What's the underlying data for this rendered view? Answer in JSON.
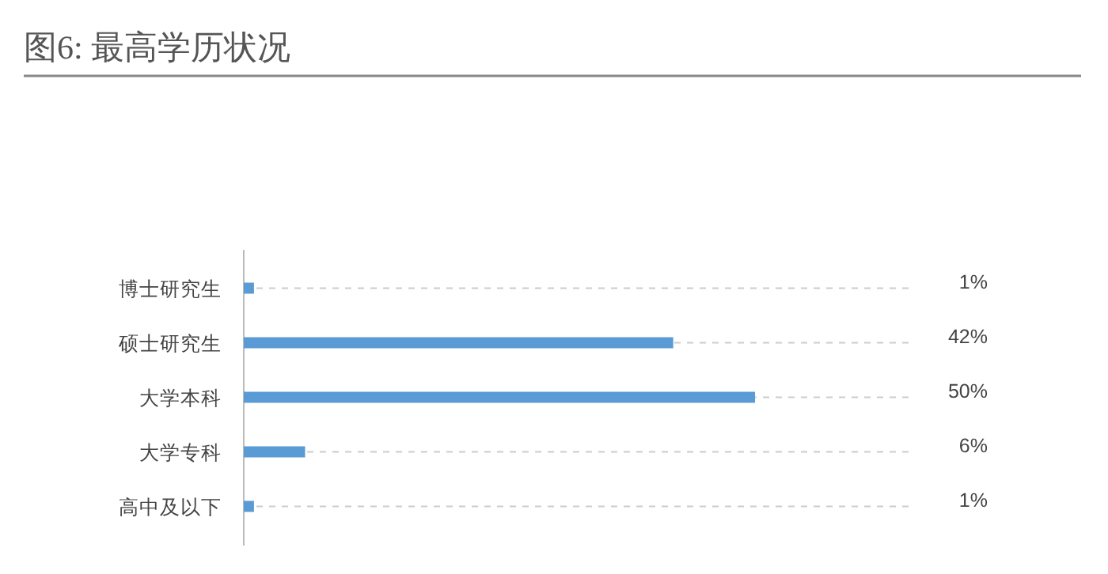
{
  "chart_data": {
    "type": "bar",
    "orientation": "horizontal",
    "title": "图6: 最高学历状况",
    "categories": [
      "博士研究生",
      "硕士研究生",
      "大学本科",
      "大学专科",
      "高中及以下"
    ],
    "values": [
      1,
      42,
      50,
      6,
      1
    ],
    "value_labels": [
      "1%",
      "42%",
      "50%",
      "6%",
      "1%"
    ],
    "color": "#5b9bd5",
    "grid": "y"
  }
}
